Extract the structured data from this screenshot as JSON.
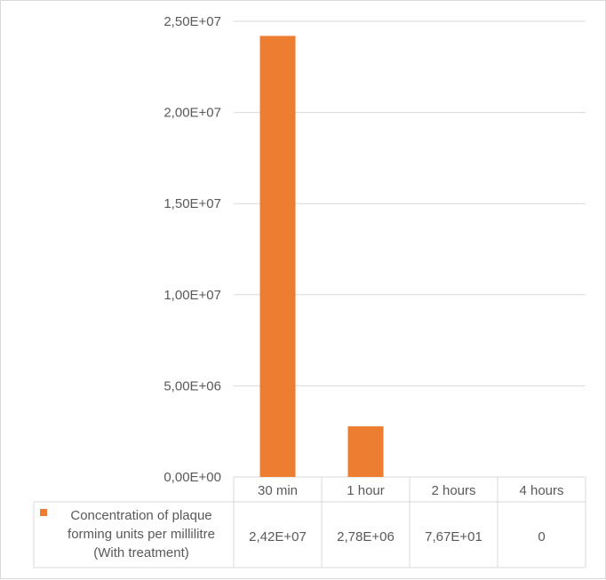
{
  "chart_data": {
    "type": "bar",
    "categories": [
      "30 min",
      "1 hour",
      "2 hours",
      "4 hours"
    ],
    "series": [
      {
        "name": "Concentration of plaque forming units per millilitre (With treatment)",
        "name_lines": [
          "Concentration of plaque",
          "forming units per millilitre",
          "(With treatment)"
        ],
        "values": [
          24200000,
          2780000,
          76.7,
          0
        ],
        "value_labels": [
          "2,42E+07",
          "2,78E+06",
          "7,67E+01",
          "0"
        ],
        "color": "#ed7d31"
      }
    ],
    "y_ticks": [
      0,
      5000000,
      10000000,
      15000000,
      20000000,
      25000000
    ],
    "y_tick_labels": [
      "0,00E+00",
      "5,00E+06",
      "1,00E+07",
      "1,50E+07",
      "2,00E+07",
      "2,50E+07"
    ],
    "ylim": [
      0,
      25000000
    ],
    "title": "",
    "xlabel": "",
    "ylabel": "",
    "grid": true,
    "legend": "data-table",
    "gridline_color": "#d9d9d9"
  }
}
